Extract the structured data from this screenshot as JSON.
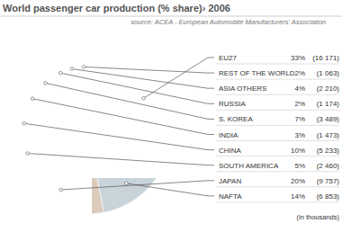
{
  "chart_data": {
    "type": "pie",
    "title": "World passenger car production (% share)› 2006",
    "source": "source: ACEA - European Automobile Manufacturers' Association",
    "categories": [
      "EU27",
      "REST OF THE WORLD",
      "ASIA OTHERS",
      "RUSSIA",
      "S. KOREA",
      "INDIA",
      "CHINA",
      "SOUTH AMERICA",
      "JAPAN",
      "NAFTA"
    ],
    "values": [
      33,
      2,
      4,
      2,
      7,
      3,
      10,
      5,
      20,
      14
    ],
    "value_labels": [
      "33%",
      "2%",
      "4%",
      "2%",
      "7%",
      "3%",
      "10%",
      "5%",
      "20%",
      "14%"
    ],
    "production_labels": [
      "(16 171)",
      "(1 063)",
      "(2 210)",
      "(1 174)",
      "(3 489)",
      "(1 473)",
      "(5 233)",
      "(2 460)",
      "(9 757)",
      "(6 853)"
    ],
    "note": "(in thousands)",
    "colors": [
      "#b6c5cd",
      "#d4708c",
      "#2a78b6",
      "#5b7d86",
      "#8fc0cc",
      "#bdb2c6",
      "#9aa4ad",
      "#6f8fbf",
      "#dccbbc",
      "#c9d3da"
    ],
    "legend": "right"
  }
}
